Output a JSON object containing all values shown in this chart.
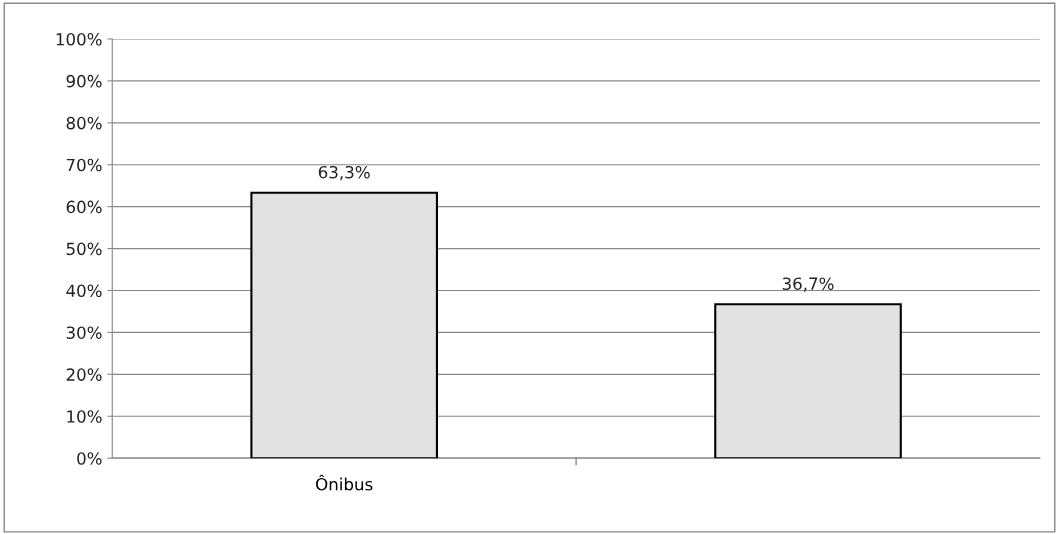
{
  "chart_data": {
    "type": "bar",
    "categories": [
      "Ônibus",
      null
    ],
    "values": [
      63.3,
      36.7
    ],
    "value_labels": [
      "63,3%",
      "36,7%"
    ],
    "color": "#e2e2e2",
    "ylim": [
      0,
      100
    ],
    "yticks": [
      {
        "value": 0,
        "label": "0%"
      },
      {
        "value": 10,
        "label": "10%"
      },
      {
        "value": 20,
        "label": "20%"
      },
      {
        "value": 30,
        "label": "30%"
      },
      {
        "value": 40,
        "label": "40%"
      },
      {
        "value": 50,
        "label": "50%"
      },
      {
        "value": 60,
        "label": "60%"
      },
      {
        "value": 70,
        "label": "70%"
      },
      {
        "value": 80,
        "label": "80%"
      },
      {
        "value": 90,
        "label": "90%"
      },
      {
        "value": 100,
        "label": "100%"
      }
    ],
    "grid": "y",
    "legend": false
  }
}
